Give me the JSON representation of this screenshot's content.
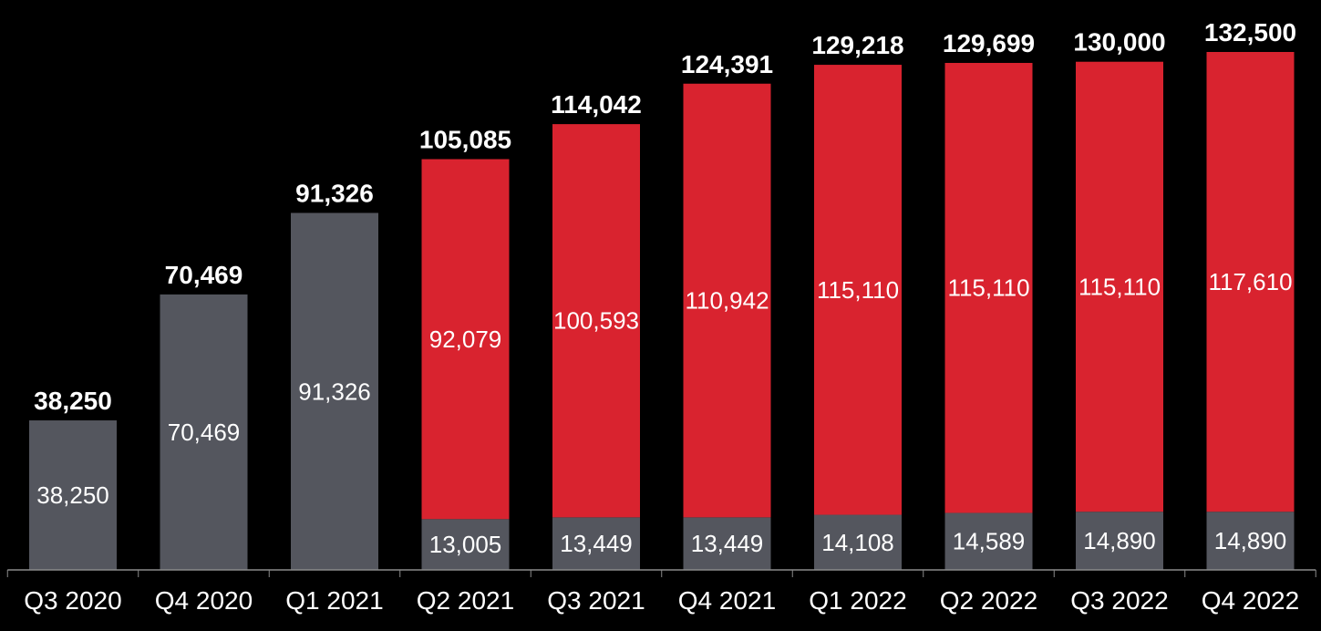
{
  "colors": {
    "background": "#000000",
    "gray_segment": "#54565e",
    "red_segment": "#d9232f",
    "axis": "#8a8a8a",
    "text": "#ffffff"
  },
  "chart_data": {
    "type": "bar",
    "stacked": true,
    "legend": "none",
    "grid": false,
    "ylim": [
      0,
      135000
    ],
    "categories": [
      "Q3 2020",
      "Q4 2020",
      "Q1 2021",
      "Q2 2021",
      "Q3 2021",
      "Q4 2021",
      "Q1 2022",
      "Q2 2022",
      "Q3 2022",
      "Q4 2022"
    ],
    "series": [
      {
        "color": "#54565e",
        "values": [
          38250,
          70469,
          91326,
          13005,
          13449,
          13449,
          14108,
          14589,
          14890,
          14890
        ],
        "labels": [
          "38,250",
          "70,469",
          "91,326",
          "13,005",
          "13,449",
          "13,449",
          "14,108",
          "14,589",
          "14,890",
          "14,890"
        ]
      },
      {
        "color": "#d9232f",
        "values": [
          0,
          0,
          0,
          92079,
          100593,
          110942,
          115110,
          115110,
          115110,
          117610
        ],
        "labels": [
          "",
          "",
          "",
          "92,079",
          "100,593",
          "110,942",
          "115,110",
          "115,110",
          "115,110",
          "117,610"
        ]
      }
    ],
    "totals": [
      38250,
      70469,
      91326,
      105085,
      114042,
      124391,
      129218,
      129699,
      130000,
      132500
    ],
    "total_labels": [
      "38,250",
      "70,469",
      "91,326",
      "105,085",
      "114,042",
      "124,391",
      "129,218",
      "129,699",
      "130,000",
      "132,500"
    ]
  }
}
